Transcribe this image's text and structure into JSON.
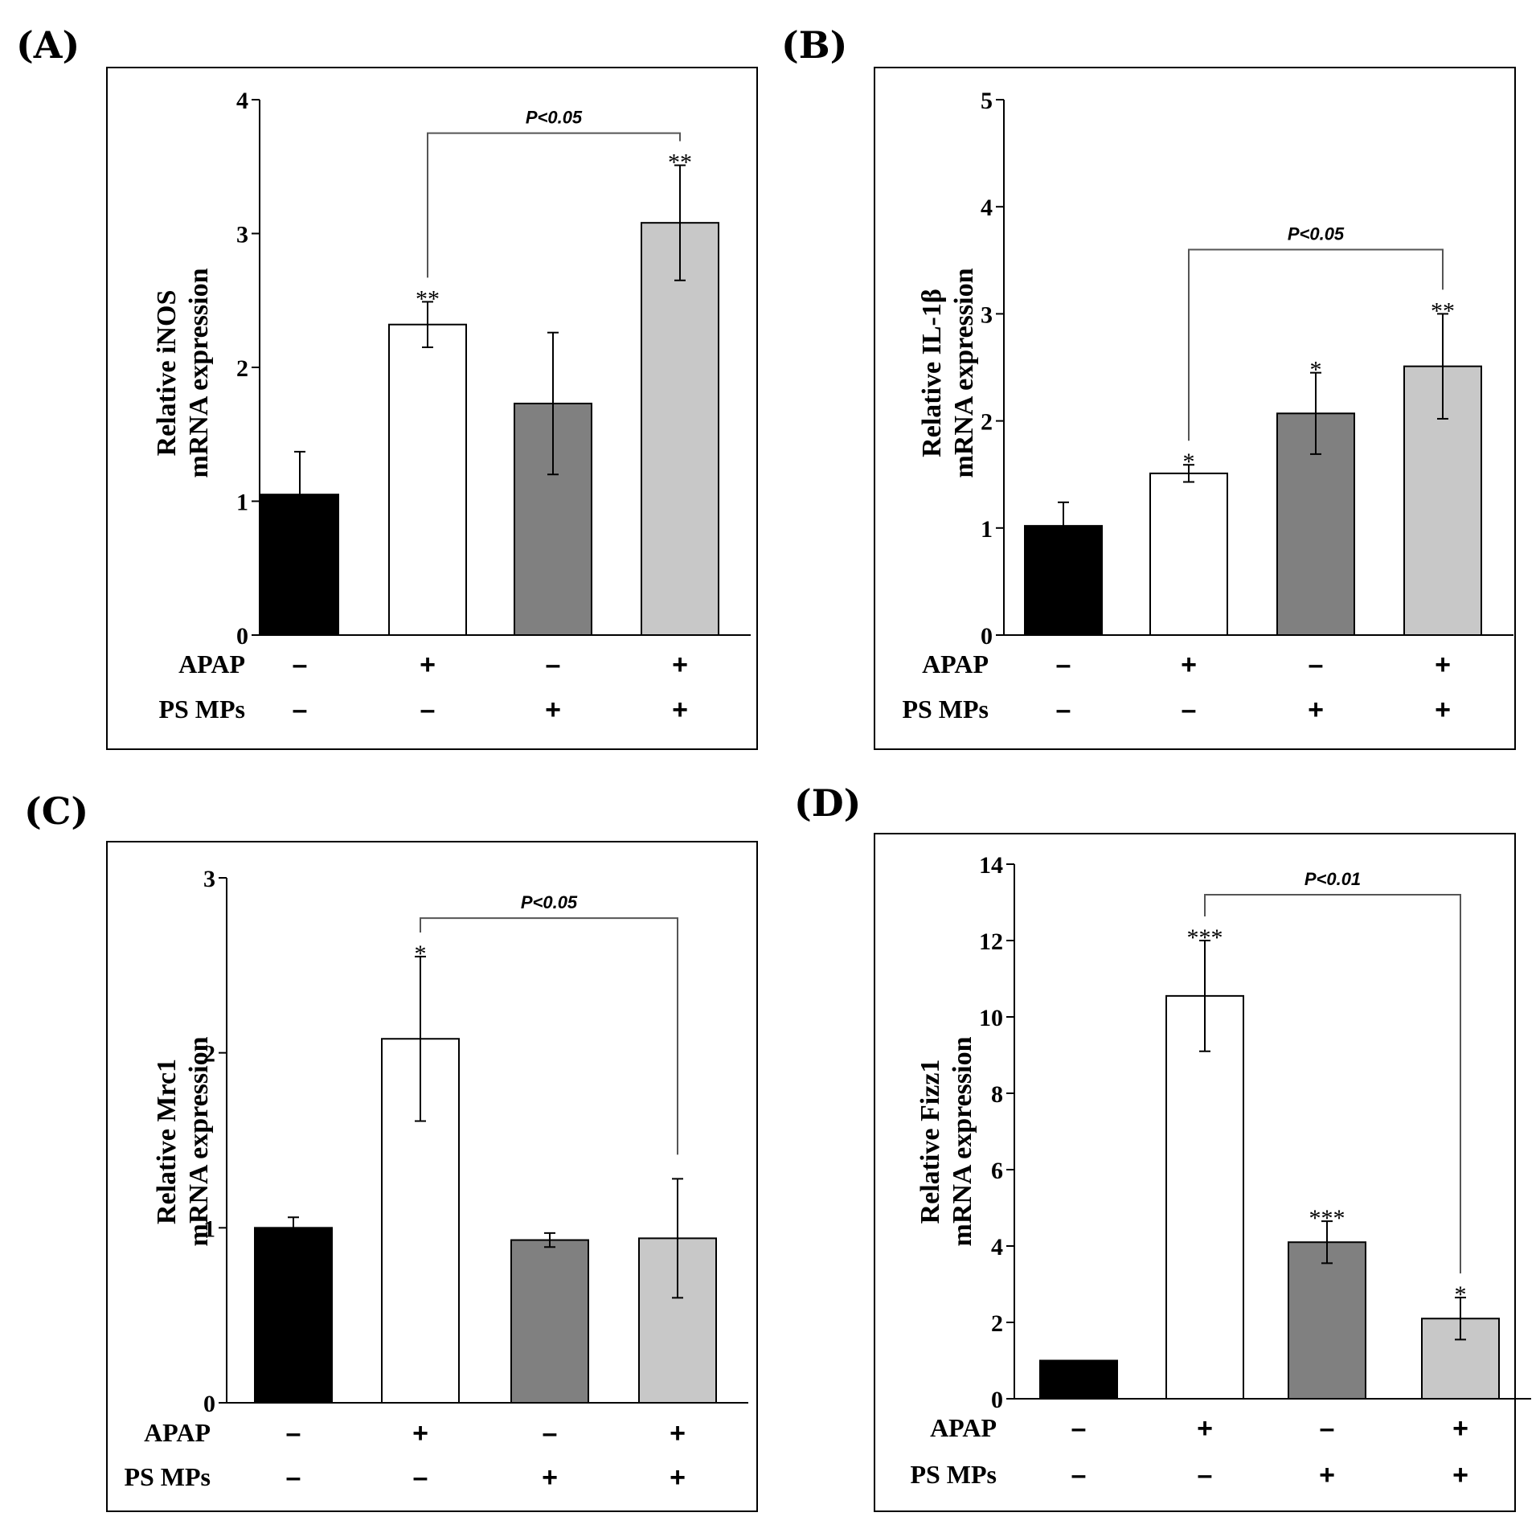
{
  "bar_colors": [
    "#000000",
    "#ffffff",
    "#808080",
    "#c8c8c8"
  ],
  "conditions": [
    {
      "name": "APAP",
      "signs": [
        "–",
        "+",
        "–",
        "+"
      ]
    },
    {
      "name": "PS MPs",
      "signs": [
        "–",
        "–",
        "+",
        "+"
      ]
    }
  ],
  "chart_data": [
    {
      "panel": "(A)",
      "type": "bar",
      "ylabel_lines": [
        "Relative iNOS",
        "mRNA expression"
      ],
      "ylim": [
        0,
        4
      ],
      "yticks": [
        0,
        1,
        2,
        3,
        4
      ],
      "values": [
        1.05,
        2.32,
        1.73,
        3.08
      ],
      "errors": [
        0.32,
        0.17,
        0.53,
        0.43
      ],
      "stars": [
        "",
        "**",
        "",
        "**"
      ],
      "comparison": {
        "from": 1,
        "to": 3,
        "y": 3.75,
        "label": "P<0.05"
      }
    },
    {
      "panel": "(B)",
      "type": "bar",
      "ylabel_lines": [
        "Relative IL-1β",
        "mRNA expression"
      ],
      "ylim": [
        0,
        5
      ],
      "yticks": [
        0,
        1,
        2,
        3,
        4,
        5
      ],
      "values": [
        1.02,
        1.51,
        2.07,
        2.51
      ],
      "errors": [
        0.22,
        0.08,
        0.38,
        0.49
      ],
      "stars": [
        "",
        "*",
        "*",
        "**"
      ],
      "comparison": {
        "from": 1,
        "to": 3,
        "y": 3.6,
        "label": "P<0.05"
      }
    },
    {
      "panel": "(C)",
      "type": "bar",
      "ylabel_lines": [
        "Relative Mrc1",
        "mRNA expression"
      ],
      "ylim": [
        0,
        3
      ],
      "yticks": [
        0,
        1,
        2,
        3
      ],
      "values": [
        1.0,
        2.08,
        0.93,
        0.94
      ],
      "errors": [
        0.06,
        0.47,
        0.04,
        0.34
      ],
      "stars": [
        "",
        "*",
        "",
        ""
      ],
      "comparison": {
        "from": 1,
        "to": 3,
        "y": 2.77,
        "label": "P<0.05"
      }
    },
    {
      "panel": "(D)",
      "type": "bar",
      "ylabel_lines": [
        "Relative Fizz1",
        "mRNA expression"
      ],
      "ylim": [
        0,
        14
      ],
      "yticks": [
        0,
        2,
        4,
        6,
        8,
        10,
        12,
        14
      ],
      "values": [
        1.0,
        10.55,
        4.1,
        2.1
      ],
      "errors": [
        0.0,
        1.45,
        0.55,
        0.55
      ],
      "stars": [
        "",
        "***",
        "***",
        "*"
      ],
      "comparison": {
        "from": 1,
        "to": 3,
        "y": 13.2,
        "label": "P<0.01"
      }
    }
  ]
}
